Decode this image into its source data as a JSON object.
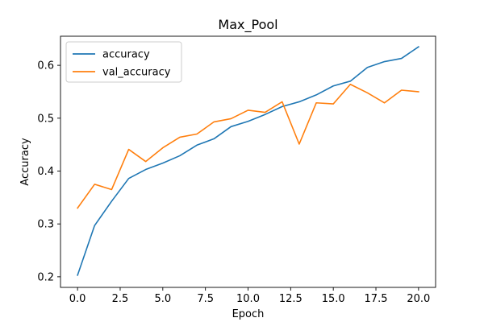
{
  "chart_data": {
    "type": "line",
    "title": "Max_Pool",
    "xlabel": "Epoch",
    "ylabel": "Accuracy",
    "xlim": [
      -1,
      21
    ],
    "ylim": [
      0.18,
      0.655
    ],
    "xticks": [
      0.0,
      2.5,
      5.0,
      7.5,
      10.0,
      12.5,
      15.0,
      17.5,
      20.0
    ],
    "xtick_labels": [
      "0.0",
      "2.5",
      "5.0",
      "7.5",
      "10.0",
      "12.5",
      "15.0",
      "17.5",
      "20.0"
    ],
    "yticks": [
      0.2,
      0.3,
      0.4,
      0.5,
      0.6
    ],
    "ytick_labels": [
      "0.2",
      "0.3",
      "0.4",
      "0.5",
      "0.6"
    ],
    "grid": false,
    "legend_position": "upper-left",
    "x": [
      0,
      1,
      2,
      3,
      4,
      5,
      6,
      7,
      8,
      9,
      10,
      11,
      12,
      13,
      14,
      15,
      16,
      17,
      18,
      19,
      20
    ],
    "series": [
      {
        "name": "accuracy",
        "color": "#1f77b4",
        "values": [
          0.203,
          0.297,
          0.343,
          0.386,
          0.403,
          0.415,
          0.429,
          0.449,
          0.461,
          0.484,
          0.494,
          0.507,
          0.522,
          0.531,
          0.544,
          0.561,
          0.57,
          0.596,
          0.607,
          0.613,
          0.635
        ]
      },
      {
        "name": "val_accuracy",
        "color": "#ff7f0e",
        "values": [
          0.33,
          0.375,
          0.365,
          0.441,
          0.418,
          0.444,
          0.464,
          0.47,
          0.493,
          0.499,
          0.515,
          0.511,
          0.531,
          0.451,
          0.529,
          0.527,
          0.564,
          0.548,
          0.529,
          0.553,
          0.55
        ]
      }
    ]
  }
}
